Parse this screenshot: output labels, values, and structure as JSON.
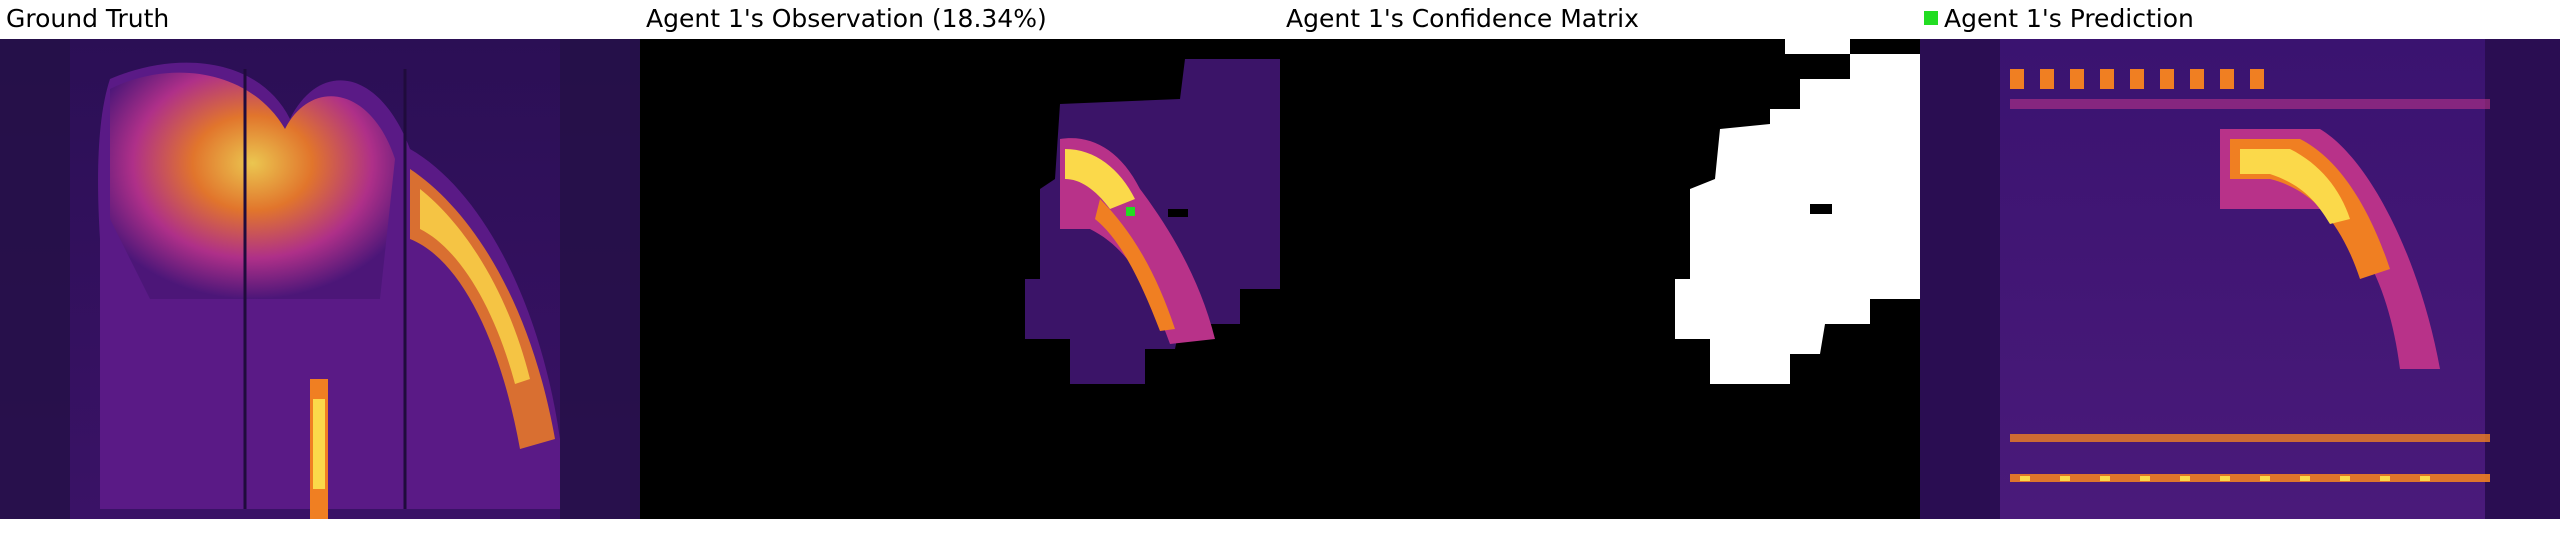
{
  "figure": {
    "panels": [
      {
        "title": "Ground Truth"
      },
      {
        "title": "Agent 1's Observation (18.34%)"
      },
      {
        "title": "Agent 1's Confidence Matrix"
      },
      {
        "title": "Agent 1's Prediction"
      }
    ],
    "observation_percent": "18.34%",
    "colors": {
      "background_dark": "#2a0c4f",
      "mid_purple": "#6b1a8a",
      "magenta": "#b83289",
      "orange": "#f07f22",
      "yellow": "#fbd94a",
      "agent_marker": "#22dd22",
      "confidence_high": "#ffffff",
      "confidence_low": "#000000"
    }
  }
}
